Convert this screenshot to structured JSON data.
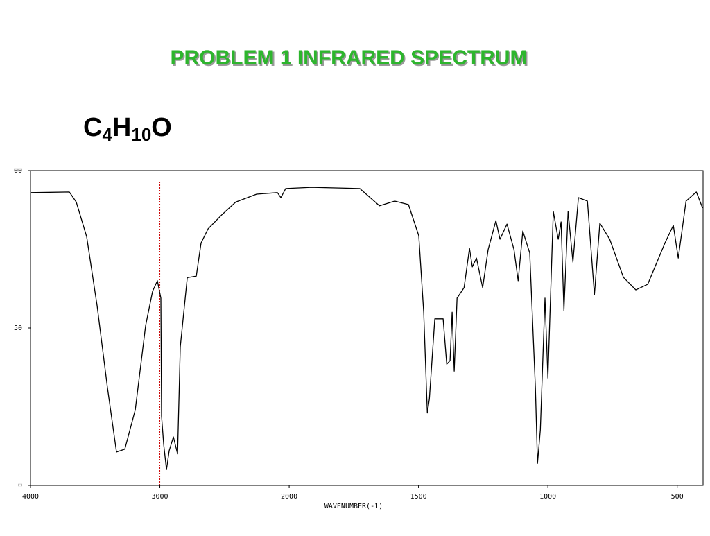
{
  "title": "PROBLEM  1   INFRARED SPECTRUM",
  "formula": {
    "parts": [
      "C",
      "4",
      "H",
      "10",
      "O"
    ],
    "subscripts": [
      1,
      3
    ]
  },
  "chart_data": {
    "type": "line",
    "x_label": "WAVENUMBER(-1)",
    "xlim": [
      4000,
      400
    ],
    "x_scale_break": 2000,
    "x_scale_factor": 2,
    "xticks": [
      4000,
      3000,
      2000,
      1500,
      1000,
      500
    ],
    "ylim": [
      0,
      100
    ],
    "yticks": [
      0,
      50,
      {
        "value": 100,
        "label": "00"
      }
    ],
    "reference_line": {
      "x": 3000,
      "color": "#cc0000"
    },
    "series": [
      {
        "color": "#000000",
        "x": [
          4000,
          3700,
          3646,
          3566,
          3485,
          3405,
          3335,
          3271,
          3190,
          3110,
          3056,
          3019,
          2992,
          2987,
          2970,
          2949,
          2928,
          2895,
          2863,
          2842,
          2788,
          2718,
          2681,
          2627,
          2520,
          2413,
          2252,
          2091,
          2064,
          2027,
          1914,
          1727,
          1651,
          1592,
          1539,
          1499,
          1480,
          1466,
          1458,
          1437,
          1405,
          1391,
          1378,
          1370,
          1362,
          1351,
          1324,
          1303,
          1292,
          1276,
          1252,
          1231,
          1201,
          1185,
          1158,
          1131,
          1115,
          1097,
          1070,
          1048,
          1040,
          1029,
          1011,
          1000,
          979,
          960,
          949,
          938,
          922,
          903,
          882,
          847,
          820,
          799,
          761,
          708,
          660,
          614,
          547,
          515,
          496,
          466,
          426,
          402
        ],
        "values": [
          93,
          93.2,
          90,
          79,
          57,
          31,
          10.6,
          11.5,
          24,
          50.7,
          61.7,
          65,
          59.5,
          22,
          13,
          5,
          11,
          15.4,
          10,
          44,
          66,
          66.5,
          77,
          81.5,
          86,
          90,
          92.5,
          93,
          91.4,
          94.3,
          94.7,
          94.3,
          88.8,
          90.3,
          89.2,
          79.3,
          55,
          23,
          27.5,
          52.9,
          52.9,
          38.5,
          39.6,
          55,
          36.3,
          59.5,
          62.8,
          75.3,
          69.4,
          72.2,
          62.8,
          74.9,
          84.1,
          78.2,
          83,
          74.9,
          65,
          80.8,
          73.8,
          30.8,
          7,
          17.6,
          59.5,
          34.1,
          87,
          78.2,
          83.7,
          55.5,
          87,
          70.9,
          91.4,
          90.3,
          60.6,
          83.3,
          78.2,
          66.1,
          62.1,
          63.9,
          77.1,
          82.6,
          72.2,
          90.3,
          93.2,
          88.1
        ]
      }
    ]
  }
}
